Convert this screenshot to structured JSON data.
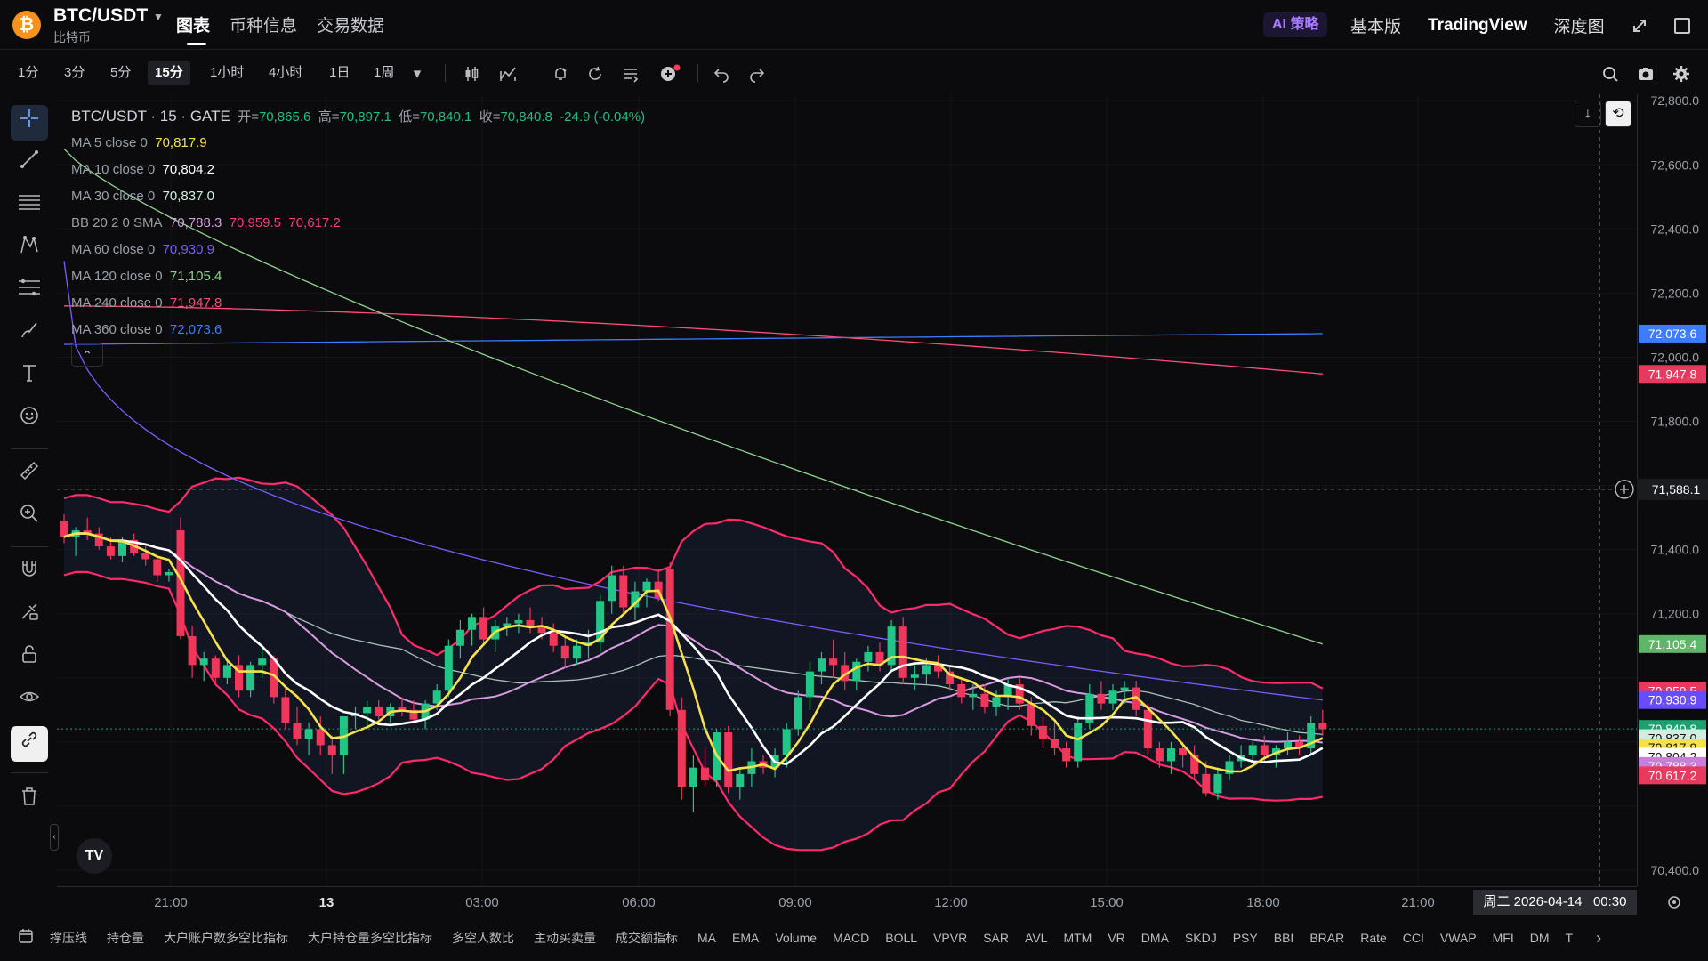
{
  "header": {
    "coin_symbol": "₿",
    "pair": "BTC/USDT",
    "pair_sub": "比特币",
    "tabs": [
      "图表",
      "币种信息",
      "交易数据"
    ],
    "active_tab": "图表",
    "ai_badge": "AI 策略",
    "links": [
      "基本版",
      "TradingView",
      "深度图"
    ]
  },
  "toolbar": {
    "timeframes": [
      "1分",
      "3分",
      "5分",
      "15分",
      "1小时",
      "4小时",
      "1日",
      "1周"
    ],
    "active_timeframe": "15分",
    "dropdown_caret": "▾"
  },
  "legend": {
    "title": "BTC/USDT · 15 · GATE",
    "ohlc": {
      "open_label": "开=",
      "open": "70,865.6",
      "high_label": "高=",
      "high": "70,897.1",
      "low_label": "低=",
      "low": "70,840.1",
      "close_label": "收=",
      "close": "70,840.8",
      "change": "-24.9 (-0.04%)"
    },
    "rows": [
      {
        "label": "MA 5 close 0",
        "value": "70,817.9",
        "color": "#f5e14a"
      },
      {
        "label": "MA 10 close 0",
        "value": "70,804.2",
        "color": "#ffffff"
      },
      {
        "label": "MA 30 close 0",
        "value": "70,837.0",
        "color": "#b9e3c8"
      },
      {
        "label": "BB 20 2 0 SMA",
        "value": "70,788.3",
        "value2": "70,959.5",
        "value3": "70,617.2",
        "color": "#d99be0",
        "color2": "#ff3a7a"
      },
      {
        "label": "MA 60 close 0",
        "value": "70,930.9",
        "color": "#7b5cff"
      },
      {
        "label": "MA 120 close 0",
        "value": "71,105.4",
        "color": "#8fd38f"
      },
      {
        "label": "MA 240 close 0",
        "value": "71,947.8",
        "color": "#ff4d7a"
      },
      {
        "label": "MA 360 close 0",
        "value": "72,073.6",
        "color": "#3d7bff"
      }
    ],
    "collapse_icon": "⌃"
  },
  "price_axis": {
    "ticks": [
      "72,800.0",
      "72,600.0",
      "72,400.0",
      "72,200.0",
      "72,000.0",
      "71,800.0",
      "71,400.0",
      "71,200.0",
      "70,400.0"
    ],
    "crosshair_price": "71,588.1",
    "tags": [
      {
        "text": "72,073.6",
        "color": "#3d7bff"
      },
      {
        "text": "71,947.8",
        "color": "#e8395e"
      },
      {
        "text": "71,105.4",
        "color": "#5fb56a"
      },
      {
        "text": "70,959.5",
        "color": "#e8395e"
      },
      {
        "text": "70,930.9",
        "color": "#6a4cff"
      },
      {
        "text": "70,840.8",
        "color": "#1aa370"
      },
      {
        "text": "70,837.0",
        "color": "#cfeedd"
      },
      {
        "text": "70,817.9",
        "color": "#f5e14a"
      },
      {
        "text": "70,804.2",
        "color": "#ffffff"
      },
      {
        "text": "70,788.3",
        "color": "#c97fd6"
      },
      {
        "text": "70,617.2",
        "color": "#e8395e"
      }
    ]
  },
  "time_axis": {
    "ticks": [
      "21:00",
      "13",
      "03:00",
      "06:00",
      "09:00",
      "12:00",
      "15:00",
      "18:00",
      "21:00"
    ],
    "cursor_date": "周二 2026-04-14",
    "cursor_time": "00:30"
  },
  "indicators_bar": [
    "撑压线",
    "持仓量",
    "大户账户数多空比指标",
    "大户持仓量多空比指标",
    "多空人数比",
    "主动买卖量",
    "成交额指标",
    "MA",
    "EMA",
    "Volume",
    "MACD",
    "BOLL",
    "VPVR",
    "SAR",
    "AVL",
    "MTM",
    "VR",
    "DMA",
    "SKDJ",
    "PSY",
    "BBI",
    "BRAR",
    "Rate",
    "CCI",
    "VWAP",
    "MFI",
    "DM",
    "T"
  ],
  "tv_logo": "TV",
  "chart_data": {
    "type": "candlestick",
    "title": "BTC/USDT · 15 · GATE",
    "ylim": [
      70350,
      72820
    ],
    "x_labels": [
      "21:00",
      "13",
      "03:00",
      "06:00",
      "09:00",
      "12:00",
      "15:00",
      "18:00",
      "21:00"
    ],
    "candles_ohlc": [
      [
        71490,
        71510,
        71420,
        71440
      ],
      [
        71440,
        71470,
        71380,
        71460
      ],
      [
        71460,
        71500,
        71430,
        71450
      ],
      [
        71450,
        71470,
        71400,
        71410
      ],
      [
        71410,
        71440,
        71370,
        71380
      ],
      [
        71380,
        71440,
        71360,
        71430
      ],
      [
        71430,
        71450,
        71380,
        71390
      ],
      [
        71390,
        71420,
        71350,
        71370
      ],
      [
        71370,
        71380,
        71300,
        71320
      ],
      [
        71320,
        71340,
        71300,
        71330
      ],
      [
        71460,
        71500,
        71120,
        71130
      ],
      [
        71130,
        71160,
        71000,
        71040
      ],
      [
        71040,
        71080,
        70990,
        71060
      ],
      [
        71060,
        71070,
        70980,
        71000
      ],
      [
        71000,
        71050,
        70980,
        71040
      ],
      [
        71040,
        71070,
        70940,
        70960
      ],
      [
        70960,
        71050,
        70940,
        71040
      ],
      [
        71040,
        71090,
        71000,
        71060
      ],
      [
        71060,
        71070,
        70920,
        70940
      ],
      [
        70940,
        70970,
        70840,
        70860
      ],
      [
        70860,
        70910,
        70790,
        70810
      ],
      [
        70810,
        70860,
        70760,
        70840
      ],
      [
        70840,
        70880,
        70760,
        70790
      ],
      [
        70790,
        70820,
        70700,
        70760
      ],
      [
        70760,
        70880,
        70700,
        70880
      ],
      [
        70880,
        70910,
        70840,
        70890
      ],
      [
        70890,
        70930,
        70850,
        70910
      ],
      [
        70910,
        70930,
        70870,
        70880
      ],
      [
        70880,
        70920,
        70860,
        70910
      ],
      [
        70910,
        70940,
        70880,
        70900
      ],
      [
        70900,
        70930,
        70860,
        70870
      ],
      [
        70870,
        70930,
        70840,
        70920
      ],
      [
        70920,
        70980,
        70900,
        70960
      ],
      [
        70960,
        71120,
        70940,
        71100
      ],
      [
        71100,
        71180,
        71060,
        71150
      ],
      [
        71150,
        71200,
        71100,
        71190
      ],
      [
        71190,
        71220,
        71100,
        71120
      ],
      [
        71120,
        71180,
        71080,
        71160
      ],
      [
        71160,
        71190,
        71130,
        71170
      ],
      [
        71170,
        71200,
        71140,
        71180
      ],
      [
        71180,
        71220,
        71140,
        71160
      ],
      [
        71160,
        71190,
        71120,
        71140
      ],
      [
        71140,
        71170,
        71080,
        71100
      ],
      [
        71100,
        71130,
        71030,
        71060
      ],
      [
        71060,
        71120,
        71040,
        71100
      ],
      [
        71100,
        71150,
        71060,
        71110
      ],
      [
        71110,
        71260,
        71080,
        71240
      ],
      [
        71240,
        71350,
        71200,
        71320
      ],
      [
        71320,
        71350,
        71200,
        71220
      ],
      [
        71220,
        71300,
        71180,
        71270
      ],
      [
        71270,
        71310,
        71220,
        71300
      ],
      [
        71300,
        71340,
        71240,
        71250
      ],
      [
        71340,
        71360,
        70880,
        70900
      ],
      [
        70900,
        70940,
        70620,
        70660
      ],
      [
        70660,
        70760,
        70580,
        70720
      ],
      [
        70720,
        70780,
        70660,
        70680
      ],
      [
        70680,
        70840,
        70660,
        70830
      ],
      [
        70830,
        70850,
        70640,
        70660
      ],
      [
        70660,
        70720,
        70620,
        70700
      ],
      [
        70700,
        70780,
        70660,
        70740
      ],
      [
        70740,
        70760,
        70700,
        70720
      ],
      [
        70720,
        70780,
        70690,
        70760
      ],
      [
        70760,
        70860,
        70720,
        70840
      ],
      [
        70840,
        70960,
        70820,
        70940
      ],
      [
        70940,
        71050,
        70900,
        71020
      ],
      [
        71020,
        71080,
        70980,
        71060
      ],
      [
        71060,
        71120,
        71000,
        71040
      ],
      [
        71040,
        71080,
        70960,
        70990
      ],
      [
        70990,
        71060,
        70960,
        71050
      ],
      [
        71050,
        71100,
        71020,
        71080
      ],
      [
        71080,
        71110,
        71020,
        71040
      ],
      [
        71040,
        71180,
        71020,
        71160
      ],
      [
        71160,
        71190,
        70980,
        71000
      ],
      [
        71000,
        71040,
        70960,
        71010
      ],
      [
        71010,
        71060,
        70980,
        71040
      ],
      [
        71040,
        71070,
        71000,
        71020
      ],
      [
        71020,
        71040,
        70960,
        70980
      ],
      [
        70980,
        71000,
        70920,
        70940
      ],
      [
        70940,
        70980,
        70900,
        70950
      ],
      [
        70950,
        70980,
        70890,
        70910
      ],
      [
        70910,
        70960,
        70880,
        70940
      ],
      [
        70940,
        71000,
        70900,
        70980
      ],
      [
        70980,
        71000,
        70900,
        70920
      ],
      [
        70920,
        70940,
        70820,
        70850
      ],
      [
        70850,
        70880,
        70780,
        70810
      ],
      [
        70810,
        70860,
        70760,
        70780
      ],
      [
        70780,
        70800,
        70720,
        70740
      ],
      [
        70740,
        70880,
        70720,
        70860
      ],
      [
        70860,
        70980,
        70840,
        70950
      ],
      [
        70950,
        70990,
        70900,
        70920
      ],
      [
        70920,
        70980,
        70900,
        70960
      ],
      [
        70960,
        70990,
        70920,
        70970
      ],
      [
        70970,
        70990,
        70880,
        70900
      ],
      [
        70900,
        70920,
        70760,
        70780
      ],
      [
        70780,
        70800,
        70720,
        70740
      ],
      [
        70740,
        70800,
        70700,
        70780
      ],
      [
        70780,
        70800,
        70720,
        70760
      ],
      [
        70760,
        70790,
        70680,
        70700
      ],
      [
        70700,
        70740,
        70630,
        70640
      ],
      [
        70640,
        70720,
        70620,
        70700
      ],
      [
        70700,
        70760,
        70680,
        70740
      ],
      [
        70740,
        70790,
        70720,
        70760
      ],
      [
        70760,
        70800,
        70740,
        70790
      ],
      [
        70790,
        70820,
        70740,
        70760
      ],
      [
        70760,
        70790,
        70720,
        70780
      ],
      [
        70780,
        70830,
        70760,
        70800
      ],
      [
        70800,
        70820,
        70760,
        70780
      ],
      [
        70780,
        70880,
        70760,
        70860
      ],
      [
        70860,
        70900,
        70820,
        70840
      ]
    ]
  }
}
